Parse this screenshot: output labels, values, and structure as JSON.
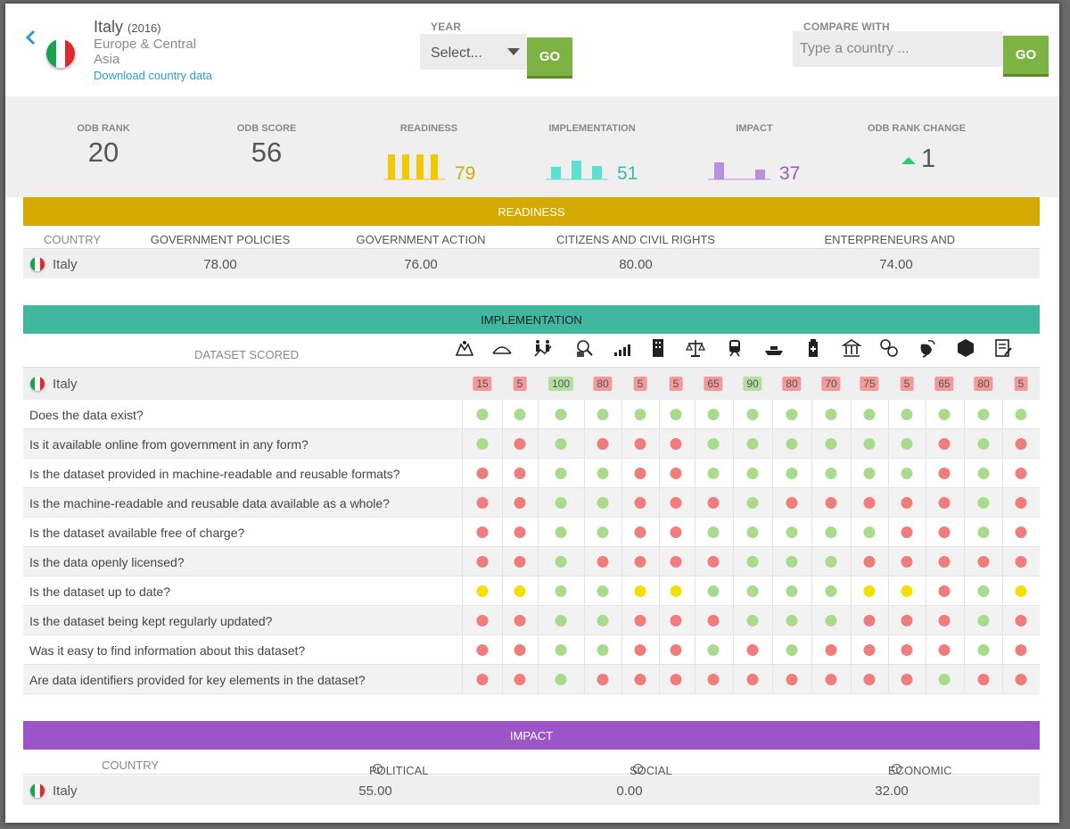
{
  "header": {
    "country": "Italy",
    "year": "(2016)",
    "region": "Europe & Central Asia",
    "download_label": "Download country data",
    "year_label": "YEAR",
    "year_select": "Select...",
    "go_label": "GO",
    "compare_label": "COMPARE WITH",
    "compare_placeholder": "Type a country ..."
  },
  "summary": {
    "rank_label": "ODB RANK",
    "rank": "20",
    "score_label": "ODB SCORE",
    "score": "56",
    "readiness_label": "READINESS",
    "readiness": "79",
    "implementation_label": "IMPLEMENTATION",
    "implementation": "51",
    "impact_label": "IMPACT",
    "impact": "37",
    "rank_change_label": "ODB RANK CHANGE",
    "rank_change": "1",
    "colors": {
      "readiness": "#f4c800",
      "implementation": "#5ce0cf",
      "impact": "#b88ee0",
      "up": "#2ecc71"
    }
  },
  "readiness": {
    "title": "READINESS",
    "color": "#d4aa00",
    "columns": [
      "COUNTRY",
      "GOVERNMENT POLICIES",
      "GOVERNMENT ACTION",
      "CITIZENS AND CIVIL RIGHTS",
      "ENTERPRENEURS AND BUSINESS"
    ],
    "row": {
      "country": "Italy",
      "values": [
        "78.00",
        "76.00",
        "80.00",
        "74.00"
      ]
    }
  },
  "implementation": {
    "title": "IMPLEMENTATION",
    "color": "#40b8a0",
    "dataset_label": "DATASET SCORED",
    "icons": [
      "map-icon",
      "land-icon",
      "census-icon",
      "budget-icon",
      "spending-icon",
      "company-icon",
      "legislation-icon",
      "transport-icon",
      "trade-icon",
      "health-icon",
      "education-icon",
      "crime-icon",
      "environment-icon",
      "elections-icon",
      "contracts-icon"
    ],
    "country": "Italy",
    "scores": [
      "15",
      "5",
      "100",
      "80",
      "5",
      "5",
      "65",
      "90",
      "80",
      "70",
      "75",
      "5",
      "65",
      "80",
      "5"
    ],
    "questions": [
      "Does the data exist?",
      "Is it available online from government in any form?",
      "Is the dataset provided in machine-readable and reusable formats?",
      "Is the machine-readable and reusable data available as a whole?",
      "Is the dataset available free of charge?",
      "Is the data openly licensed?",
      "Is the dataset up to date?",
      "Is the dataset being kept regularly updated?",
      "Was it easy to find information about this dataset?",
      "Are data identifiers provided for key elements in the dataset?"
    ],
    "answers": [
      "ggggggggggggggg",
      "grgrrrggggggrgr",
      "rrggrrggggggrgr",
      "rrggrrrgrrrrrgr",
      "rrggrrgggggrrgr",
      "rrgrrrrgggrrrrr",
      "yyggyyggggyyrgy",
      "rrggrrrgggrrrgr",
      "rrggrrgrgrrrrgr",
      "rrgrrrrrrrrrgrr"
    ],
    "colors": {
      "g": "#a8dc8c",
      "r": "#f07c7c",
      "y": "#f4e000",
      "score_good": "#b2e0a0",
      "score_bad": "#f29a9a"
    }
  },
  "impact": {
    "title": "IMPACT",
    "color": "#9b55c8",
    "columns": [
      "COUNTRY",
      "POLITICAL",
      "SOCIAL",
      "ECONOMIC"
    ],
    "row": {
      "country": "Italy",
      "values": [
        "55.00",
        "0.00",
        "32.00"
      ]
    }
  }
}
